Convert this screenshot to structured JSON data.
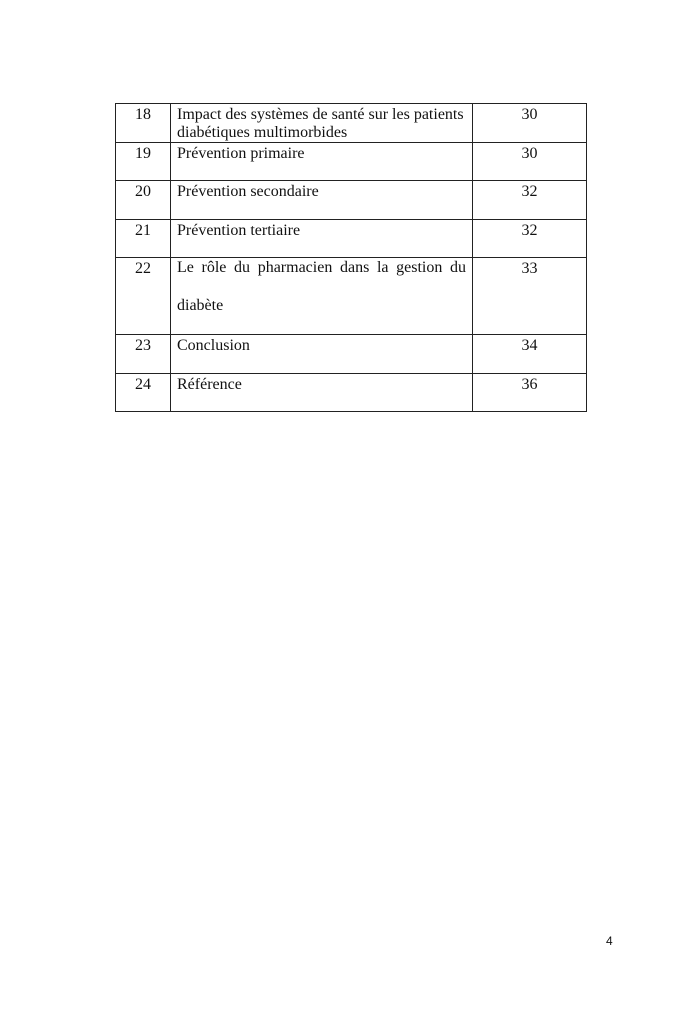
{
  "toc": {
    "rows": [
      {
        "num": "18",
        "title": "Impact des systèmes de santé sur les patients diabétiques multimorbides",
        "page": "30"
      },
      {
        "num": "19",
        "title": "Prévention primaire",
        "page": "30"
      },
      {
        "num": "20",
        "title": "Prévention secondaire",
        "page": "32"
      },
      {
        "num": "21",
        "title": "Prévention tertiaire",
        "page": "32"
      },
      {
        "num": "22",
        "title": "Le rôle du pharmacien dans la gestion du diabète",
        "page": "33"
      },
      {
        "num": "23",
        "title": "Conclusion",
        "page": "34"
      },
      {
        "num": "24",
        "title": "Référence",
        "page": "36"
      }
    ]
  },
  "footer": {
    "page_number": "4"
  }
}
